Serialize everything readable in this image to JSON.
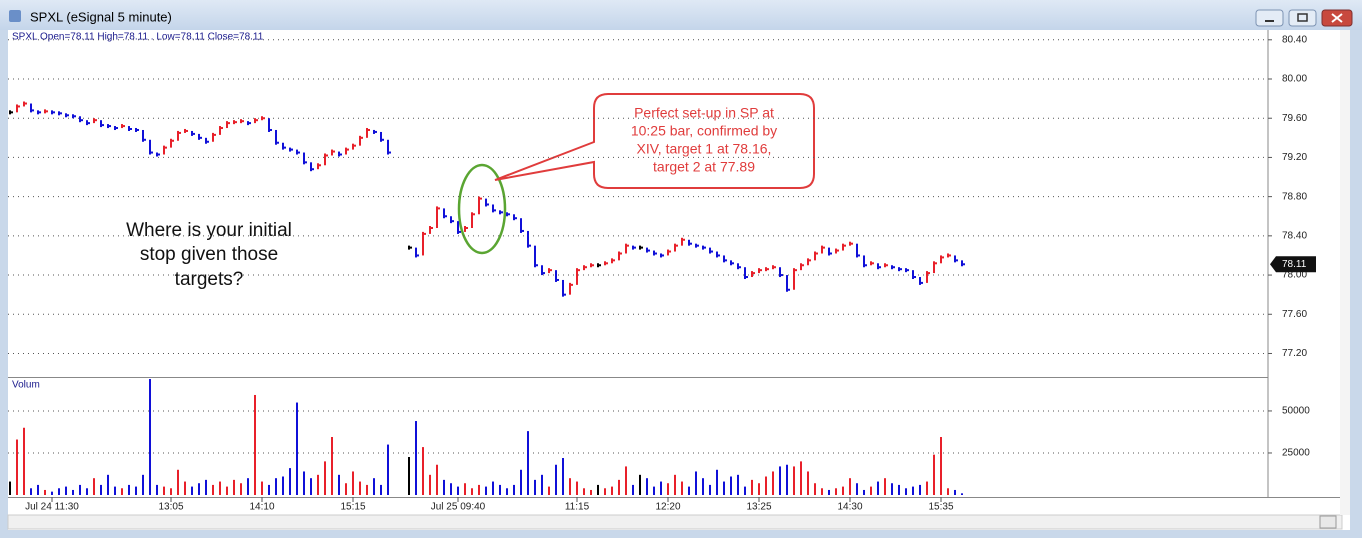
{
  "chart_data": {
    "type": "price-bars",
    "window_title": "SPXL (eSignal 5 minute)",
    "legend_text": "SPXL  Open=78.11  High=78.11 . Low=78.11  Close=78.11",
    "volume_label": "Volum",
    "last_price": 78.11,
    "note": [
      "Where is your initial",
      "stop given those",
      "targets?"
    ],
    "callout": [
      "Perfect set-up in SP at",
      "10:25 bar, confirmed by",
      "XIV, target 1 at 78.16,",
      "target 2 at 77.89"
    ],
    "grid": true,
    "up_color": "#e8202a",
    "down_color": "#1010d8",
    "flat_color": "#000000",
    "categories": [
      null,
      null,
      null,
      null,
      null,
      null,
      "Jul 24 11:30",
      null,
      null,
      null,
      null,
      null,
      null,
      null,
      null,
      null,
      null,
      null,
      null,
      null,
      null,
      null,
      null,
      "13:05",
      null,
      null,
      null,
      null,
      null,
      null,
      null,
      null,
      null,
      null,
      null,
      null,
      "14:10",
      null,
      null,
      null,
      null,
      null,
      null,
      null,
      null,
      null,
      null,
      null,
      null,
      "15:15",
      null,
      null,
      null,
      null,
      null,
      null,
      null,
      null,
      null,
      null,
      null,
      null,
      null,
      null,
      "Jul 25 09:40",
      null,
      null,
      null,
      null,
      null,
      null,
      null,
      null,
      null,
      null,
      null,
      null,
      null,
      null,
      null,
      null,
      "11:15",
      null,
      null,
      null,
      null,
      null,
      null,
      null,
      null,
      null,
      null,
      null,
      null,
      "12:20",
      null,
      null,
      null,
      null,
      null,
      null,
      null,
      null,
      null,
      null,
      null,
      null,
      "13:25",
      null,
      null,
      null,
      null,
      null,
      null,
      null,
      null,
      null,
      null,
      null,
      null,
      "14:30",
      null,
      null,
      null,
      null,
      null,
      null,
      null,
      null,
      null,
      null,
      null,
      null,
      "15:35",
      null,
      null,
      null
    ],
    "close": [
      79.66,
      79.72,
      79.75,
      79.68,
      79.66,
      79.67,
      79.66,
      79.65,
      79.63,
      79.62,
      79.58,
      79.55,
      79.58,
      79.53,
      79.52,
      79.5,
      79.52,
      79.49,
      79.48,
      79.38,
      79.25,
      79.23,
      79.3,
      79.37,
      79.45,
      79.47,
      79.44,
      79.4,
      79.36,
      79.43,
      79.5,
      79.55,
      79.56,
      79.57,
      79.55,
      79.58,
      79.6,
      79.48,
      79.35,
      79.3,
      79.28,
      79.25,
      79.15,
      79.08,
      79.12,
      79.22,
      79.26,
      79.23,
      79.28,
      79.32,
      79.4,
      79.48,
      79.46,
      79.38,
      79.25,
      null,
      null,
      78.28,
      78.2,
      78.42,
      78.48,
      78.68,
      78.6,
      78.55,
      78.44,
      78.48,
      78.62,
      78.78,
      78.72,
      78.66,
      78.64,
      78.62,
      78.58,
      78.45,
      78.3,
      78.1,
      78.02,
      78.05,
      77.95,
      77.8,
      77.9,
      78.05,
      78.08,
      78.1,
      78.1,
      78.12,
      78.15,
      78.22,
      78.3,
      78.28,
      78.28,
      78.25,
      78.22,
      78.2,
      78.24,
      78.3,
      78.36,
      78.32,
      78.3,
      78.28,
      78.24,
      78.2,
      78.15,
      78.12,
      78.08,
      77.98,
      78.02,
      78.05,
      78.06,
      78.08,
      78,
      77.85,
      78.05,
      78.1,
      78.15,
      78.22,
      78.28,
      78.22,
      78.25,
      78.3,
      78.32,
      78.2,
      78.1,
      78.12,
      78.08,
      78.1,
      78.08,
      78.06,
      78.05,
      77.98,
      77.92,
      78.02,
      78.12,
      78.18,
      78.2,
      78.15,
      78.11
    ],
    "volume": [
      8000,
      33000,
      40000,
      4000,
      6000,
      3000,
      2000,
      4000,
      5000,
      3000,
      6000,
      4000,
      10000,
      6000,
      12000,
      5000,
      4000,
      6000,
      5000,
      12000,
      69000,
      6000,
      5000,
      4000,
      15000,
      8000,
      5000,
      7000,
      9000,
      6000,
      8000,
      5000,
      9000,
      7000,
      10000,
      59500,
      8000,
      6000,
      10000,
      11000,
      16000,
      55000,
      14000,
      10000,
      12000,
      20000,
      34500,
      12000,
      7000,
      14000,
      8000,
      6000,
      10000,
      6000,
      30000,
      null,
      null,
      22600,
      44000,
      28500,
      12000,
      18000,
      9000,
      7000,
      5000,
      7000,
      4000,
      6000,
      5000,
      8000,
      6000,
      4000,
      6000,
      15000,
      38000,
      9000,
      12000,
      5000,
      18000,
      22000,
      10000,
      8000,
      4000,
      3000,
      6000,
      4000,
      5000,
      9000,
      17000,
      6000,
      12000,
      10000,
      5000,
      8000,
      7000,
      12000,
      8000,
      5000,
      14000,
      10000,
      6000,
      15000,
      8000,
      11000,
      12000,
      5000,
      9000,
      7000,
      11000,
      14000,
      17000,
      18000,
      17000,
      20000,
      14000,
      7000,
      4000,
      3000,
      4000,
      5000,
      10000,
      7000,
      3000,
      5000,
      8000,
      10000,
      7000,
      6000,
      4000,
      5000,
      6000,
      8000,
      24000,
      34500,
      4000,
      3000,
      1000
    ],
    "ylim": [
      76.96,
      80.5
    ],
    "yticks": [
      {
        "value": 77.2,
        "label": "77.20"
      },
      {
        "value": 77.6,
        "label": "77.60"
      },
      {
        "value": 78,
        "label": "78.00"
      },
      {
        "value": 78.4,
        "label": "78.40"
      },
      {
        "value": 78.8,
        "label": "78.80"
      },
      {
        "value": 79.2,
        "label": "79.20"
      },
      {
        "value": 79.6,
        "label": "79.60"
      },
      {
        "value": 80,
        "label": "80.00"
      },
      {
        "value": 80.4,
        "label": "80.40"
      }
    ],
    "y2lim": [
      0,
      69600
    ],
    "y2ticks": [
      25000,
      50000
    ]
  }
}
